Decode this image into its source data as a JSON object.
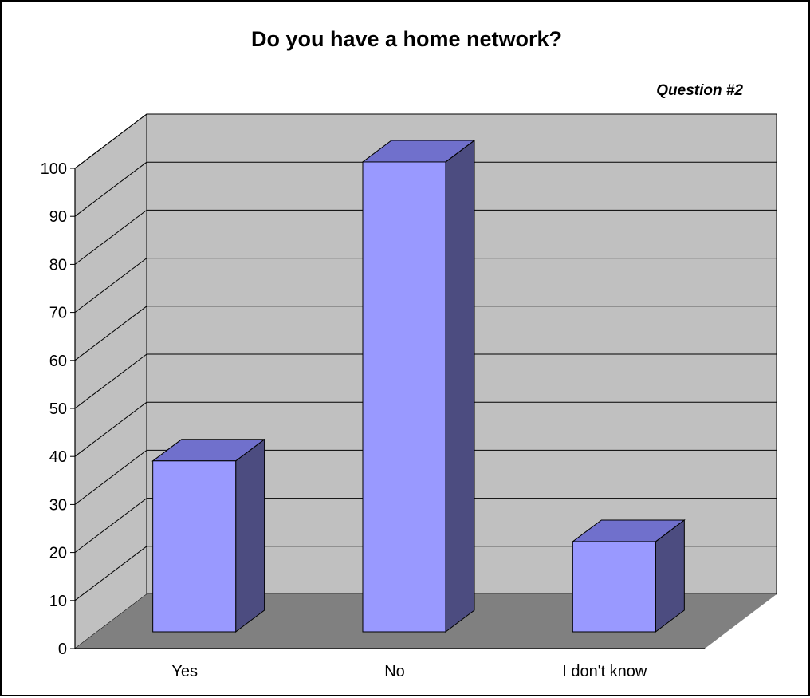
{
  "chart_data": {
    "type": "bar",
    "title": "Do you have a home network?",
    "subtitle": "Question #2",
    "categories": [
      "Yes",
      "No",
      "I don't know"
    ],
    "values": [
      36,
      99,
      19
    ],
    "ylim": [
      0,
      100
    ],
    "yticks": [
      0,
      10,
      20,
      30,
      40,
      50,
      60,
      70,
      80,
      90,
      100
    ],
    "grid": true,
    "three_d": true,
    "xlabel": "",
    "ylabel": ""
  },
  "colors": {
    "bar_front": "#9999ff",
    "bar_top": "#7070cc",
    "bar_side": "#4c4c80",
    "wall": "#c0c0c0",
    "floor": "#808080"
  }
}
